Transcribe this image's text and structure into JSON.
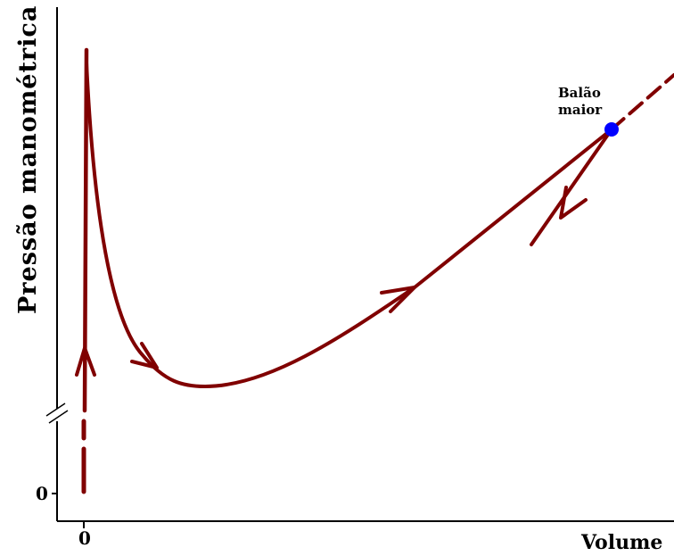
{
  "axes": {
    "y_label": "Pressão manométrica",
    "x_label": "Volume",
    "y_tick": "0",
    "x_tick": "0",
    "y_axis_break": true
  },
  "balloon": {
    "label_line1": "Balão",
    "label_line2": "maior"
  },
  "colors": {
    "curve": "#800000",
    "point": "#0000ff",
    "axis": "#000000"
  }
}
